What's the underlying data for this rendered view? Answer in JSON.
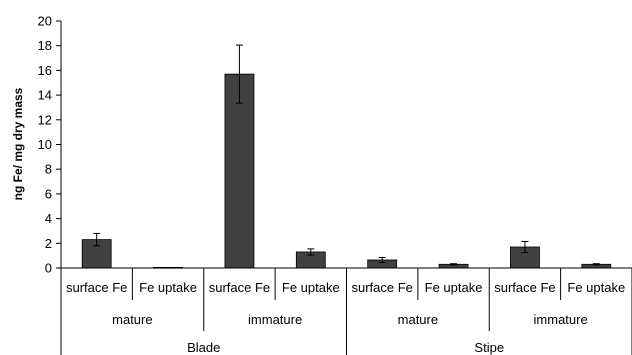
{
  "chart_data": {
    "type": "bar",
    "title": "",
    "xlabel": "",
    "ylabel": "ng Fe/ mg dry mass",
    "ylim": [
      0,
      20
    ],
    "yticks": [
      0,
      2,
      4,
      6,
      8,
      10,
      12,
      14,
      16,
      18,
      20
    ],
    "grid": false,
    "bar_color": "#404040",
    "categories": [
      {
        "tissue": "Blade",
        "stage": "mature",
        "measure": "surface Fe"
      },
      {
        "tissue": "Blade",
        "stage": "mature",
        "measure": "Fe uptake"
      },
      {
        "tissue": "Blade",
        "stage": "immature",
        "measure": "surface Fe"
      },
      {
        "tissue": "Blade",
        "stage": "immature",
        "measure": "Fe uptake"
      },
      {
        "tissue": "Stipe",
        "stage": "mature",
        "measure": "surface Fe"
      },
      {
        "tissue": "Stipe",
        "stage": "mature",
        "measure": "Fe uptake"
      },
      {
        "tissue": "Stipe",
        "stage": "immature",
        "measure": "surface Fe"
      },
      {
        "tissue": "Stipe",
        "stage": "immature",
        "measure": "Fe uptake"
      }
    ],
    "values": [
      2.3,
      0.05,
      15.7,
      1.3,
      0.65,
      0.3,
      1.7,
      0.3
    ],
    "errors": [
      0.5,
      0.0,
      2.35,
      0.25,
      0.2,
      0.05,
      0.45,
      0.05
    ],
    "stage_groups": [
      {
        "label": "mature",
        "start": 0,
        "end": 1
      },
      {
        "label": "immature",
        "start": 2,
        "end": 3
      },
      {
        "label": "mature",
        "start": 4,
        "end": 5
      },
      {
        "label": "immature",
        "start": 6,
        "end": 7
      }
    ],
    "tissue_groups": [
      {
        "label": "Blade",
        "start": 0,
        "end": 3
      },
      {
        "label": "Stipe",
        "start": 4,
        "end": 7
      }
    ]
  }
}
